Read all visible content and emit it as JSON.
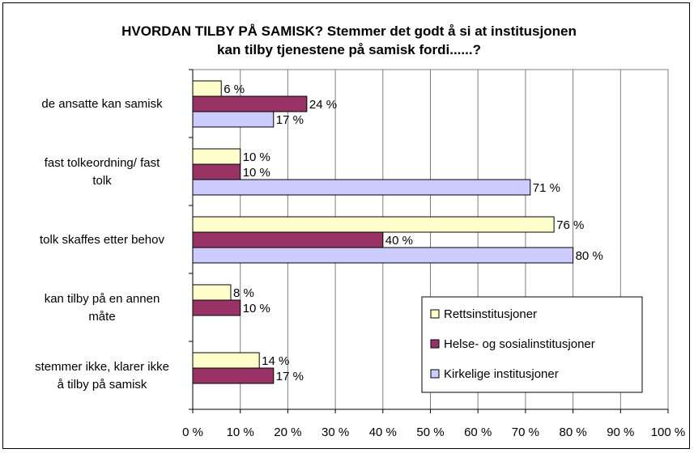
{
  "chart_data": {
    "type": "bar",
    "orientation": "horizontal",
    "title": "HVORDAN TILBY PÅ SAMISK? Stemmer det godt å si at institusjonen kan tilby tjenestene på samisk fordi......?",
    "title_lines": [
      "HVORDAN TILBY PÅ SAMISK? Stemmer det godt å si at institusjonen",
      "kan tilby tjenestene på samisk fordi......?"
    ],
    "categories": [
      [
        "de ansatte kan samisk"
      ],
      [
        "fast tolkeordning/ fast",
        "tolk"
      ],
      [
        "tolk skaffes etter behov"
      ],
      [
        "kan tilby på en annen",
        "måte"
      ],
      [
        "stemmer ikke, klarer ikke",
        "å tilby på samisk"
      ]
    ],
    "series": [
      {
        "name": "Rettsinstitusjoner",
        "color": "#ffffcc",
        "values": [
          6,
          10,
          76,
          8,
          14
        ],
        "labels": [
          "6 %",
          "10 %",
          "76 %",
          "8 %",
          "14 %"
        ]
      },
      {
        "name": "Helse- og sosialinstitusjoner",
        "color": "#993366",
        "values": [
          24,
          10,
          40,
          10,
          17
        ],
        "labels": [
          "24 %",
          "10 %",
          "40 %",
          "10 %",
          "17 %"
        ]
      },
      {
        "name": "Kirkelige institusjoner",
        "color": "#ccccff",
        "values": [
          17,
          71,
          80,
          null,
          null
        ],
        "labels": [
          "17 %",
          "71 %",
          "80 %",
          "",
          ""
        ]
      }
    ],
    "xlim": [
      0,
      100
    ],
    "xticks": [
      "0 %",
      "10 %",
      "20 %",
      "30 %",
      "40 %",
      "50 %",
      "60 %",
      "70 %",
      "80 %",
      "90 %",
      "100 %"
    ],
    "grid": true,
    "legend_position": "bottom-right"
  }
}
